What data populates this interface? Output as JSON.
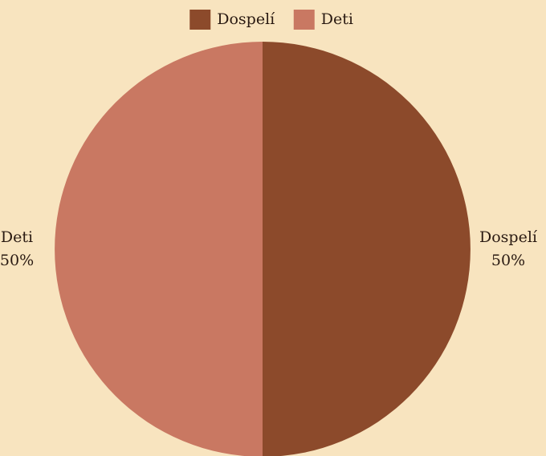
{
  "chart_data": {
    "type": "pie",
    "categories": [
      "Dospelí",
      "Deti"
    ],
    "values": [
      50,
      50
    ],
    "value_labels": [
      "50%",
      "50%"
    ],
    "colors": [
      "#8c4a2b",
      "#c97862"
    ],
    "legend": "top"
  }
}
